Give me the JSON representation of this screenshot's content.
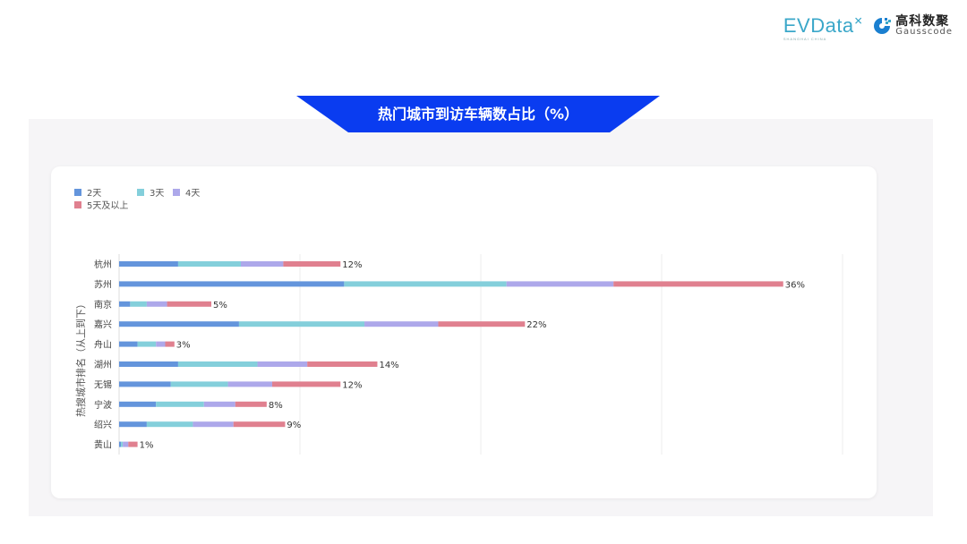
{
  "logos": {
    "evdata": "EVData",
    "evdata_sub": "SHANGHAI CHINA",
    "gauss_cn": "高科数聚",
    "gauss_en": "Gausscode"
  },
  "title": "热门城市到访车辆数占比（%）",
  "colors": {
    "banner": "#0a3cf0",
    "panel": "#f6f5f7"
  },
  "chart_data": {
    "type": "bar",
    "orientation": "horizontal",
    "stacked": true,
    "title": "热门城市到访车辆数占比（%）",
    "ylabel": "热搜城市排名（从上到下）",
    "xlabel": "",
    "xlim": [
      0,
      40
    ],
    "grid": true,
    "legend_position": "top-left",
    "categories": [
      "杭州",
      "苏州",
      "南京",
      "嘉兴",
      "舟山",
      "湖州",
      "无锡",
      "宁波",
      "绍兴",
      "黄山"
    ],
    "series": [
      {
        "name": "2天",
        "color": "#6495dc",
        "values": [
          3.2,
          12.2,
          0.6,
          6.5,
          1.0,
          3.2,
          2.8,
          2.0,
          1.5,
          0.1
        ]
      },
      {
        "name": "3天",
        "color": "#84cfdb",
        "values": [
          3.4,
          8.8,
          0.9,
          6.8,
          1.0,
          4.3,
          3.1,
          2.6,
          2.5,
          0.1
        ]
      },
      {
        "name": "4天",
        "color": "#ada8ea",
        "values": [
          2.3,
          5.8,
          1.1,
          4.0,
          0.5,
          2.7,
          2.4,
          1.7,
          2.2,
          0.3
        ]
      },
      {
        "name": "5天及以上",
        "color": "#e0808f",
        "values": [
          3.1,
          9.2,
          2.4,
          4.7,
          0.5,
          3.8,
          3.7,
          1.7,
          2.8,
          0.5
        ]
      }
    ],
    "total_labels": [
      "12%",
      "36%",
      "5%",
      "22%",
      "3%",
      "14%",
      "12%",
      "8%",
      "9%",
      "1%"
    ]
  }
}
